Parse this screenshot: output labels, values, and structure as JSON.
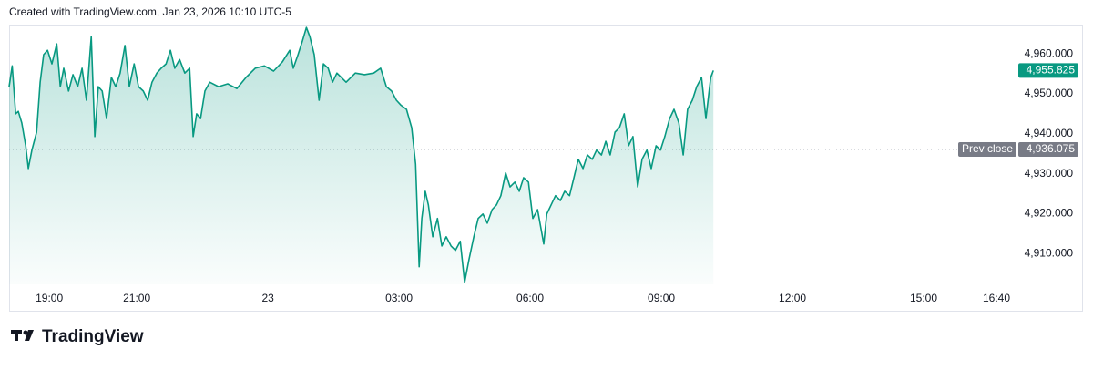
{
  "chart_data": {
    "type": "line",
    "header": "Created with TradingView.com, Jan 23, 2026 10:10 UTC-5",
    "logo": "TradingView",
    "color": "#089981",
    "x": [
      -5.92,
      -5.85,
      -5.77,
      -5.71,
      -5.63,
      -5.54,
      -5.48,
      -5.4,
      -5.29,
      -5.21,
      -5.13,
      -5.04,
      -4.94,
      -4.83,
      -4.75,
      -4.67,
      -4.56,
      -4.46,
      -4.35,
      -4.25,
      -4.15,
      -4.04,
      -3.96,
      -3.88,
      -3.79,
      -3.69,
      -3.58,
      -3.48,
      -3.38,
      -3.27,
      -3.17,
      -3.06,
      -2.96,
      -2.85,
      -2.75,
      -2.65,
      -2.54,
      -2.44,
      -2.33,
      -2.23,
      -2.13,
      -2.02,
      -1.9,
      -1.79,
      -1.71,
      -1.63,
      -1.54,
      -1.44,
      -1.33,
      -1.13,
      -0.92,
      -0.71,
      -0.5,
      -0.29,
      -0.08,
      0.13,
      0.33,
      0.5,
      0.58,
      0.69,
      0.79,
      0.88,
      0.96,
      1.06,
      1.17,
      1.27,
      1.38,
      1.48,
      1.58,
      1.79,
      2.0,
      2.21,
      2.42,
      2.58,
      2.71,
      2.83,
      2.94,
      3.04,
      3.17,
      3.29,
      3.38,
      3.46,
      3.52,
      3.6,
      3.67,
      3.77,
      3.88,
      3.98,
      4.08,
      4.19,
      4.29,
      4.4,
      4.5,
      4.6,
      4.71,
      4.81,
      4.92,
      5.02,
      5.13,
      5.23,
      5.33,
      5.44,
      5.54,
      5.65,
      5.75,
      5.85,
      5.96,
      6.06,
      6.17,
      6.31,
      6.38,
      6.48,
      6.58,
      6.69,
      6.79,
      6.9,
      7.0,
      7.1,
      7.21,
      7.31,
      7.42,
      7.52,
      7.63,
      7.73,
      7.83,
      7.94,
      8.04,
      8.15,
      8.25,
      8.35,
      8.46,
      8.56,
      8.67,
      8.77,
      8.88,
      8.98,
      9.08,
      9.19,
      9.29,
      9.4,
      9.5,
      9.6,
      9.71,
      9.81,
      9.92,
      10.02,
      10.13,
      10.19
    ],
    "values": [
      4951.8,
      4957.0,
      4945.0,
      4945.6,
      4942.7,
      4937.0,
      4931.3,
      4935.9,
      4940.4,
      4952.9,
      4959.8,
      4960.9,
      4957.5,
      4962.5,
      4951.8,
      4956.4,
      4950.7,
      4954.8,
      4951.8,
      4956.4,
      4948.4,
      4964.3,
      4939.3,
      4951.8,
      4950.7,
      4943.8,
      4954.1,
      4951.8,
      4955.2,
      4962.1,
      4951.8,
      4957.5,
      4951.8,
      4950.7,
      4948.4,
      4952.9,
      4955.2,
      4956.4,
      4957.5,
      4960.9,
      4956.4,
      4958.6,
      4955.2,
      4956.4,
      4939.3,
      4945.0,
      4943.8,
      4950.7,
      4952.9,
      4951.8,
      4952.5,
      4951.3,
      4954.1,
      4956.4,
      4957.0,
      4955.7,
      4958.0,
      4960.9,
      4956.4,
      4959.8,
      4963.2,
      4966.6,
      4964.3,
      4959.8,
      4948.4,
      4957.5,
      4956.4,
      4952.9,
      4955.2,
      4952.9,
      4955.2,
      4954.8,
      4955.2,
      4956.4,
      4951.8,
      4950.7,
      4948.4,
      4947.2,
      4946.1,
      4941.5,
      4932.4,
      4906.7,
      4918.8,
      4925.6,
      4922.2,
      4914.2,
      4918.8,
      4911.9,
      4914.2,
      4911.9,
      4910.8,
      4913.1,
      4902.8,
      4908.5,
      4914.2,
      4918.8,
      4919.9,
      4917.6,
      4921.0,
      4922.2,
      4924.5,
      4930.2,
      4926.7,
      4927.9,
      4925.6,
      4929.0,
      4927.9,
      4918.8,
      4921.0,
      4912.4,
      4919.9,
      4922.2,
      4924.5,
      4923.3,
      4925.6,
      4924.5,
      4929.0,
      4933.6,
      4931.3,
      4934.7,
      4933.6,
      4935.9,
      4934.7,
      4938.1,
      4934.7,
      4940.4,
      4941.5,
      4945.0,
      4937.0,
      4939.3,
      4926.7,
      4933.6,
      4935.9,
      4931.3,
      4937.0,
      4935.9,
      4939.3,
      4943.8,
      4946.1,
      4942.7,
      4934.7,
      4946.1,
      4948.4,
      4951.8,
      4954.1,
      4943.8,
      4954.1,
      4955.825
    ],
    "xlim": [
      -5.92,
      17.0
    ],
    "xticks": [
      {
        "value": -5,
        "label": "19:00"
      },
      {
        "value": -3,
        "label": "21:00"
      },
      {
        "value": 0,
        "label": "23"
      },
      {
        "value": 3,
        "label": "03:00"
      },
      {
        "value": 6,
        "label": "06:00"
      },
      {
        "value": 9,
        "label": "09:00"
      },
      {
        "value": 12,
        "label": "12:00"
      },
      {
        "value": 15,
        "label": "15:00"
      },
      {
        "value": 16.667,
        "label": "16:40"
      }
    ],
    "ylim": [
      4902.3,
      4967.1
    ],
    "yticks": [
      {
        "value": 4910,
        "label": "4,910.000"
      },
      {
        "value": 4920,
        "label": "4,920.000"
      },
      {
        "value": 4930,
        "label": "4,930.000"
      },
      {
        "value": 4940,
        "label": "4,940.000"
      },
      {
        "value": 4950,
        "label": "4,950.000"
      },
      {
        "value": 4960,
        "label": "4,960.000"
      }
    ],
    "last_price": {
      "value": 4955.825,
      "label": "4,955.825"
    },
    "prev_close": {
      "name": "Prev close",
      "value": 4936.075,
      "label": "4,936.075"
    }
  }
}
